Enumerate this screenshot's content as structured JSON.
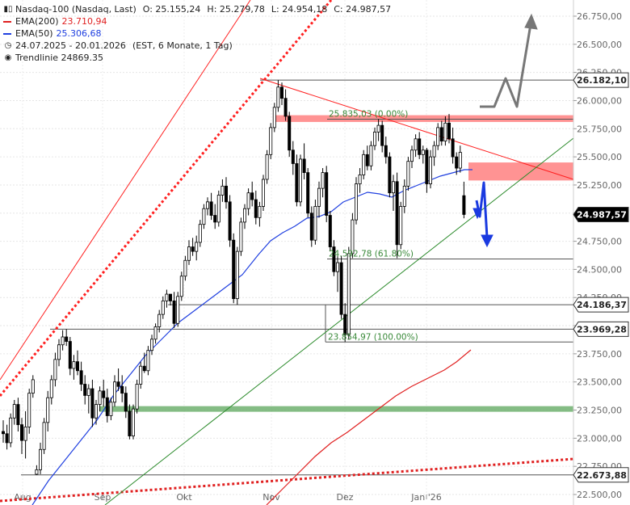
{
  "header": {
    "title": "Nasdaq-100 (Nasdaq, Last)",
    "ohlc": {
      "o": "O: 25.155,24",
      "h": "H: 25.279,78",
      "l": "L: 24.954,18",
      "c": "C: 24.987,57"
    },
    "ema200": {
      "label": "EMA(200)",
      "value": "23.710,94",
      "color": "#e02020"
    },
    "ema50": {
      "label": "EMA(50)",
      "value": "25.306,68",
      "color": "#2040e0"
    },
    "range": "24.07.2025 - 20.01.2026",
    "range_detail": "(EST, 6 Monate, 1 Tag)",
    "trendline": "Trendlinie  24869.35"
  },
  "chart_data": {
    "type": "candlestick",
    "x_range": [
      "2025-07-24",
      "2026-01-20"
    ],
    "x_labels": [
      "Aug",
      "Sep",
      "Okt",
      "Nov",
      "Dez",
      "Jan '26"
    ],
    "y_ticks": [
      "26.750,00",
      "26.500,00",
      "26.250,00",
      "26.000,00",
      "25.750,00",
      "25.500,00",
      "25.250,00",
      "25.000,00",
      "24.750,00",
      "24.500,00",
      "24.250,00",
      "24.000,00",
      "23.750,00",
      "23.500,00",
      "23.250,00",
      "23.000,00",
      "22.750,00",
      "22.500,00"
    ],
    "ylim": [
      22500,
      26880
    ],
    "price_tags": [
      {
        "value": 26182.1,
        "label": "26.182,10",
        "style": "white"
      },
      {
        "value": 24987.57,
        "label": "24.987,57",
        "style": "black"
      },
      {
        "value": 24186.37,
        "label": "24.186,37",
        "style": "white"
      },
      {
        "value": 23969.28,
        "label": "23.969,28",
        "style": "white"
      },
      {
        "value": 22673.88,
        "label": "22.673,88",
        "style": "white"
      }
    ],
    "fib_labels": [
      {
        "text": "25.835,03 (0.00%)",
        "value": 25835.03
      },
      {
        "text": "24.592,78 (61.80%)",
        "value": 24592.78
      },
      {
        "text": "23.854,97 (100.00%)",
        "value": 23854.97
      }
    ],
    "zones": [
      {
        "name": "resistance-zone-upper",
        "from": 25810,
        "to": 25870,
        "color": "#ff8080"
      },
      {
        "name": "resistance-zone-lower",
        "from": 25290,
        "to": 25450,
        "color": "#ff8080"
      },
      {
        "name": "support-zone",
        "from": 23235,
        "to": 23285,
        "color": "#6fb06f"
      }
    ],
    "ema200_color": "#e02020",
    "ema50_color": "#2040e0",
    "candles": [
      [
        23060,
        23160,
        22960,
        23040
      ],
      [
        23040,
        23120,
        22900,
        22960
      ],
      [
        22960,
        23220,
        22920,
        23180
      ],
      [
        23180,
        23340,
        23120,
        23300
      ],
      [
        23300,
        23360,
        23060,
        23120
      ],
      [
        23120,
        23180,
        22860,
        22980
      ],
      [
        22980,
        23240,
        22820,
        23100
      ],
      [
        23100,
        23440,
        23040,
        23400
      ],
      [
        23400,
        23560,
        23360,
        23520
      ],
      [
        22680,
        22760,
        22673,
        22720
      ],
      [
        22720,
        22960,
        22680,
        22900
      ],
      [
        22900,
        23180,
        22860,
        23140
      ],
      [
        23140,
        23420,
        23060,
        23360
      ],
      [
        23360,
        23560,
        23300,
        23520
      ],
      [
        23520,
        23760,
        23460,
        23700
      ],
      [
        23700,
        23880,
        23640,
        23830
      ],
      [
        23830,
        23960,
        23780,
        23900
      ],
      [
        23900,
        23969,
        23820,
        23860
      ],
      [
        23860,
        23900,
        23560,
        23620
      ],
      [
        23620,
        23740,
        23520,
        23680
      ],
      [
        23680,
        23780,
        23560,
        23600
      ],
      [
        23600,
        23680,
        23420,
        23480
      ],
      [
        23480,
        23560,
        23300,
        23380
      ],
      [
        23380,
        23480,
        23220,
        23440
      ],
      [
        23440,
        23520,
        23100,
        23180
      ],
      [
        23180,
        23340,
        23120,
        23300
      ],
      [
        23300,
        23460,
        23240,
        23420
      ],
      [
        23420,
        23520,
        23280,
        23360
      ],
      [
        23360,
        23440,
        23140,
        23200
      ],
      [
        23200,
        23360,
        23160,
        23320
      ],
      [
        23320,
        23560,
        23280,
        23500
      ],
      [
        23500,
        23620,
        23420,
        23460
      ],
      [
        23460,
        23560,
        23320,
        23400
      ],
      [
        23400,
        23460,
        23180,
        23240
      ],
      [
        23240,
        23300,
        22990,
        23020
      ],
      [
        23020,
        23300,
        22990,
        23260
      ],
      [
        23260,
        23520,
        23220,
        23480
      ],
      [
        23480,
        23680,
        23440,
        23640
      ],
      [
        23640,
        23760,
        23580,
        23600
      ],
      [
        23600,
        23820,
        23560,
        23780
      ],
      [
        23780,
        23920,
        23740,
        23880
      ],
      [
        23880,
        24020,
        23840,
        23990
      ],
      [
        23990,
        24140,
        23940,
        24100
      ],
      [
        24100,
        24260,
        24060,
        24220
      ],
      [
        24220,
        24320,
        24160,
        24280
      ],
      [
        24280,
        24240,
        24180,
        24220
      ],
      [
        24220,
        24300,
        23980,
        24020
      ],
      [
        24020,
        24300,
        23990,
        24260
      ],
      [
        24260,
        24480,
        24220,
        24440
      ],
      [
        24440,
        24620,
        24400,
        24580
      ],
      [
        24580,
        24760,
        24540,
        24700
      ],
      [
        24700,
        24780,
        24620,
        24660
      ],
      [
        24660,
        24800,
        24580,
        24740
      ],
      [
        24740,
        24940,
        24700,
        24900
      ],
      [
        24900,
        25080,
        24860,
        25040
      ],
      [
        25040,
        25140,
        24980,
        25100
      ],
      [
        25100,
        25180,
        24940,
        24980
      ],
      [
        24980,
        25080,
        24860,
        24920
      ],
      [
        24920,
        25200,
        24880,
        25160
      ],
      [
        25160,
        25300,
        25100,
        25240
      ],
      [
        25240,
        25320,
        25040,
        25100
      ],
      [
        25100,
        25160,
        24700,
        24760
      ],
      [
        24760,
        24820,
        24200,
        24240
      ],
      [
        24240,
        24700,
        24186,
        24660
      ],
      [
        24660,
        24960,
        24620,
        24920
      ],
      [
        24920,
        25080,
        24860,
        25040
      ],
      [
        25040,
        25220,
        24980,
        25180
      ],
      [
        25180,
        25280,
        25060,
        25120
      ],
      [
        25120,
        25200,
        24900,
        24960
      ],
      [
        24960,
        25100,
        24880,
        25060
      ],
      [
        25060,
        25340,
        25020,
        25300
      ],
      [
        25300,
        25560,
        25260,
        25520
      ],
      [
        25520,
        25800,
        25480,
        25760
      ],
      [
        25760,
        25980,
        25720,
        25940
      ],
      [
        25940,
        26182,
        25900,
        26120
      ],
      [
        26120,
        26160,
        25960,
        26020
      ],
      [
        26020,
        26100,
        25820,
        25860
      ],
      [
        25860,
        25900,
        25500,
        25560
      ],
      [
        25560,
        25640,
        25340,
        25440
      ],
      [
        25440,
        25520,
        25060,
        25100
      ],
      [
        25100,
        25520,
        25060,
        25480
      ],
      [
        25480,
        25620,
        25300,
        25360
      ],
      [
        25360,
        25400,
        24960,
        25000
      ],
      [
        25000,
        25060,
        24700,
        24760
      ],
      [
        24760,
        25120,
        24720,
        25060
      ],
      [
        25060,
        25280,
        24960,
        25220
      ],
      [
        25220,
        25400,
        25140,
        25360
      ],
      [
        25360,
        25420,
        24920,
        24980
      ],
      [
        24980,
        25020,
        24660,
        24700
      ],
      [
        24700,
        24760,
        24440,
        24480
      ],
      [
        24480,
        24620,
        24300,
        24560
      ],
      [
        24560,
        24620,
        24060,
        24100
      ],
      [
        24100,
        24200,
        23855,
        23920
      ],
      [
        23920,
        24700,
        23880,
        24640
      ],
      [
        24640,
        25000,
        24600,
        24940
      ],
      [
        24940,
        25320,
        24900,
        25260
      ],
      [
        25260,
        25400,
        25180,
        25340
      ],
      [
        25340,
        25560,
        25300,
        25520
      ],
      [
        25520,
        25600,
        25380,
        25420
      ],
      [
        25420,
        25640,
        25380,
        25600
      ],
      [
        25600,
        25760,
        25560,
        25720
      ],
      [
        25720,
        25835,
        25640,
        25780
      ],
      [
        25780,
        25820,
        25540,
        25600
      ],
      [
        25600,
        25680,
        25440,
        25500
      ],
      [
        25500,
        25540,
        25140,
        25180
      ],
      [
        25180,
        25340,
        25020,
        25280
      ],
      [
        25280,
        25360,
        24600,
        24720
      ],
      [
        24720,
        25100,
        24680,
        25060
      ],
      [
        25060,
        25300,
        25000,
        25240
      ],
      [
        25240,
        25500,
        25200,
        25460
      ],
      [
        25460,
        25600,
        25400,
        25560
      ],
      [
        25560,
        25700,
        25500,
        25660
      ],
      [
        25660,
        25720,
        25480,
        25520
      ],
      [
        25520,
        25600,
        25440,
        25560
      ],
      [
        25560,
        25580,
        25180,
        25260
      ],
      [
        25260,
        25560,
        25220,
        25500
      ],
      [
        25500,
        25640,
        25420,
        25600
      ],
      [
        25600,
        25800,
        25560,
        25760
      ],
      [
        25760,
        25820,
        25600,
        25640
      ],
      [
        25640,
        25860,
        25600,
        25800
      ],
      [
        25800,
        25880,
        25620,
        25660
      ],
      [
        25660,
        25760,
        25440,
        25500
      ],
      [
        25500,
        25540,
        25340,
        25400
      ],
      [
        25400,
        25600,
        25360,
        25540
      ],
      [
        25155,
        25279,
        24954,
        24988
      ]
    ]
  }
}
